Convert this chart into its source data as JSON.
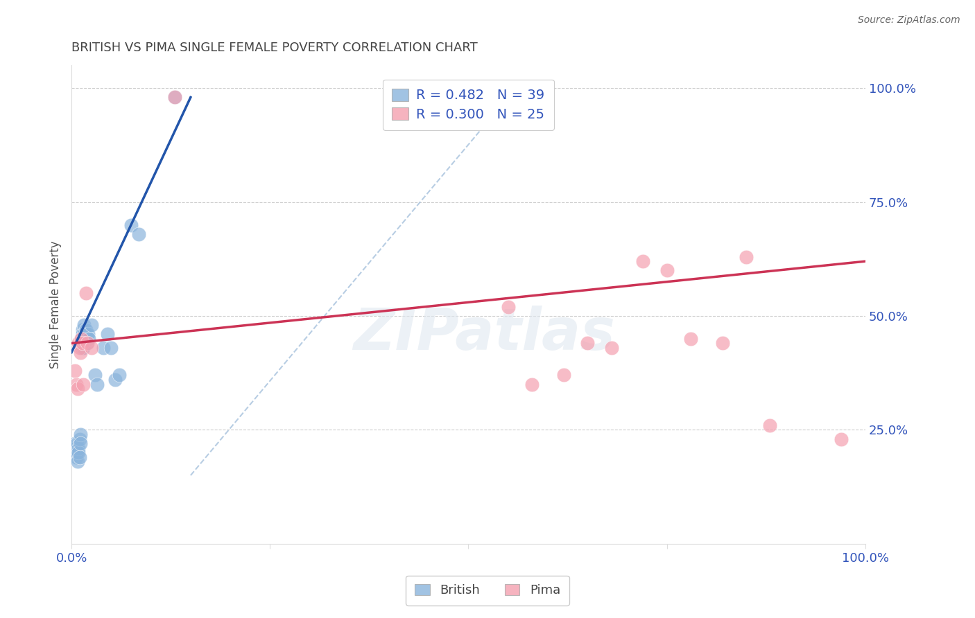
{
  "title": "BRITISH VS PIMA SINGLE FEMALE POVERTY CORRELATION CHART",
  "source": "Source: ZipAtlas.com",
  "ylabel": "Single Female Poverty",
  "xlim": [
    0.0,
    1.0
  ],
  "ylim": [
    0.0,
    1.05
  ],
  "legend_R_british": "R = 0.482",
  "legend_N_british": "N = 39",
  "legend_R_pima": "R = 0.300",
  "legend_N_pima": "N = 25",
  "british_color": "#8AB4DC",
  "pima_color": "#F4A0B0",
  "british_line_color": "#2255AA",
  "pima_line_color": "#CC3355",
  "ref_line_color": "#B0C8E0",
  "background_color": "#ffffff",
  "watermark": "ZIPatlas",
  "british_x": [
    0.003,
    0.004,
    0.005,
    0.006,
    0.007,
    0.007,
    0.008,
    0.009,
    0.009,
    0.01,
    0.01,
    0.011,
    0.011,
    0.012,
    0.013,
    0.013,
    0.014,
    0.014,
    0.015,
    0.015,
    0.016,
    0.016,
    0.017,
    0.018,
    0.019,
    0.02,
    0.021,
    0.022,
    0.025,
    0.03,
    0.032,
    0.04,
    0.045,
    0.05,
    0.055,
    0.06,
    0.075,
    0.085,
    0.13
  ],
  "british_y": [
    0.2,
    0.22,
    0.21,
    0.19,
    0.22,
    0.2,
    0.18,
    0.21,
    0.2,
    0.23,
    0.19,
    0.24,
    0.22,
    0.45,
    0.44,
    0.43,
    0.47,
    0.46,
    0.44,
    0.43,
    0.48,
    0.46,
    0.45,
    0.47,
    0.46,
    0.44,
    0.46,
    0.45,
    0.48,
    0.37,
    0.35,
    0.43,
    0.46,
    0.43,
    0.36,
    0.37,
    0.7,
    0.68,
    0.98
  ],
  "pima_x": [
    0.004,
    0.006,
    0.008,
    0.009,
    0.01,
    0.011,
    0.012,
    0.014,
    0.015,
    0.018,
    0.02,
    0.025,
    0.13,
    0.55,
    0.58,
    0.62,
    0.65,
    0.68,
    0.72,
    0.75,
    0.78,
    0.82,
    0.85,
    0.88,
    0.97
  ],
  "pima_y": [
    0.38,
    0.35,
    0.34,
    0.44,
    0.43,
    0.42,
    0.45,
    0.44,
    0.35,
    0.55,
    0.44,
    0.43,
    0.98,
    0.52,
    0.35,
    0.37,
    0.44,
    0.43,
    0.62,
    0.6,
    0.45,
    0.44,
    0.63,
    0.26,
    0.23
  ],
  "british_trendline_x": [
    0.0,
    0.15
  ],
  "british_trendline_y": [
    0.42,
    0.98
  ],
  "pima_trendline_x": [
    0.0,
    1.0
  ],
  "pima_trendline_y": [
    0.44,
    0.62
  ],
  "ref_line_x": [
    0.15,
    0.55
  ],
  "ref_line_y": [
    0.15,
    0.98
  ]
}
